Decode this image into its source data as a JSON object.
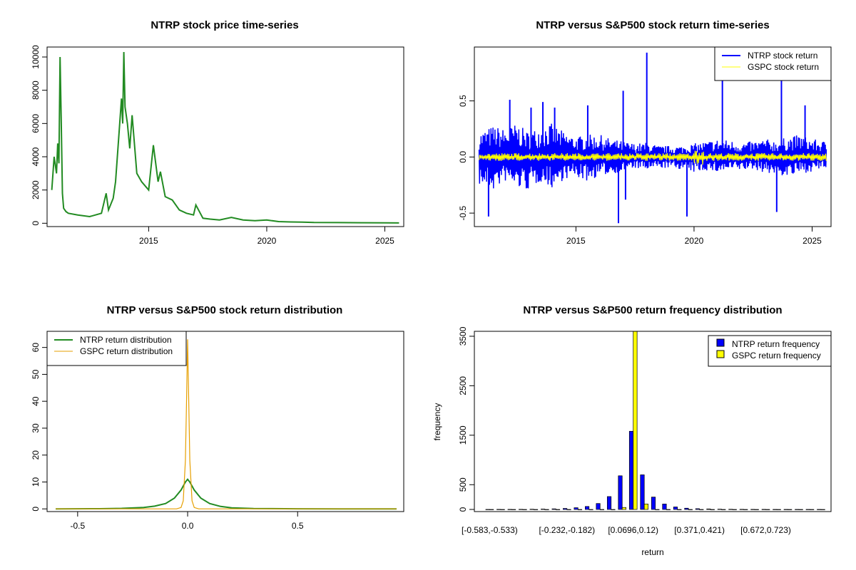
{
  "colors": {
    "price": "#228B22",
    "ntrp_return": "#0000FF",
    "gspc_return": "#FFFF00",
    "ntrp_density": "#228B22",
    "gspc_density": "#E69F00",
    "ntrp_bar": "#0000FF",
    "gspc_bar": "#FFFF00"
  },
  "chart_data": [
    {
      "type": "line",
      "title": "NTRP stock price time-series",
      "xlabel": "",
      "ylabel": "",
      "xlim": [
        2010.7,
        2025.8
      ],
      "ylim": [
        -200,
        10600
      ],
      "xticks": [
        2015,
        2020,
        2025
      ],
      "yticks": [
        0,
        2000,
        4000,
        6000,
        8000,
        10000
      ],
      "grid": false,
      "series": [
        {
          "x": [
            2010.9,
            2011.0,
            2011.1,
            2011.15,
            2011.2,
            2011.25,
            2011.3,
            2011.35,
            2011.4,
            2011.5,
            2011.6,
            2012.0,
            2012.5,
            2013.0,
            2013.2,
            2013.3,
            2013.5,
            2013.6,
            2013.75,
            2013.85,
            2013.9,
            2013.95,
            2014.0,
            2014.1,
            2014.2,
            2014.3,
            2014.5,
            2014.7,
            2015.0,
            2015.2,
            2015.4,
            2015.5,
            2015.7,
            2016.0,
            2016.3,
            2016.6,
            2016.9,
            2017.0,
            2017.3,
            2017.6,
            2018.0,
            2018.5,
            2019.0,
            2019.5,
            2020.0,
            2020.5,
            2021.0,
            2021.5,
            2022.0,
            2023.0,
            2024.0,
            2025.0,
            2025.6
          ],
          "y": [
            2000,
            4000,
            3000,
            4800,
            3600,
            10000,
            6000,
            1800,
            900,
            700,
            600,
            500,
            400,
            600,
            1800,
            800,
            1500,
            2500,
            5500,
            7500,
            6000,
            10300,
            7000,
            6000,
            4500,
            6500,
            3000,
            2500,
            2000,
            4700,
            2500,
            3100,
            1600,
            1400,
            800,
            600,
            500,
            1100,
            300,
            250,
            200,
            350,
            200,
            150,
            200,
            100,
            80,
            70,
            50,
            40,
            30,
            25,
            20
          ]
        }
      ]
    },
    {
      "type": "line",
      "title": "NTRP versus S&P500 stock return time-series",
      "xlabel": "",
      "ylabel": "",
      "xlim": [
        2010.7,
        2025.8
      ],
      "ylim": [
        -0.62,
        0.98
      ],
      "xticks": [
        2015,
        2020,
        2025
      ],
      "yticks": [
        -0.5,
        0.0,
        0.5
      ],
      "ytick_labels": [
        "-0.5",
        "0.0",
        "0.5"
      ],
      "grid": false,
      "legend": {
        "position": "top-right",
        "entries": [
          "NTRP stock return",
          "GSPC stock return"
        ]
      },
      "spikes": {
        "x": [
          2011.3,
          2012.2,
          2013.1,
          2013.6,
          2014.1,
          2015.5,
          2016.8,
          2017.0,
          2017.1,
          2018.0,
          2019.7,
          2021.2,
          2023.5,
          2023.7,
          2024.7
        ],
        "y": [
          -0.53,
          0.51,
          0.44,
          0.49,
          0.44,
          0.46,
          -0.59,
          0.59,
          -0.38,
          0.93,
          -0.53,
          0.71,
          -0.49,
          0.69,
          0.46
        ]
      },
      "envelope": {
        "x": [
          2010.9,
          2011.5,
          2012.0,
          2012.5,
          2013.0,
          2013.5,
          2014.0,
          2014.5,
          2015.0,
          2015.5,
          2016.0,
          2016.5,
          2017.0,
          2017.5,
          2018.0,
          2018.5,
          2019.0,
          2019.5,
          2020.0,
          2020.5,
          2021.0,
          2021.5,
          2022.0,
          2022.5,
          2023.0,
          2023.5,
          2024.0,
          2024.5,
          2025.0,
          2025.6
        ],
        "upper": [
          0.22,
          0.28,
          0.25,
          0.3,
          0.22,
          0.28,
          0.3,
          0.22,
          0.18,
          0.2,
          0.2,
          0.16,
          0.14,
          0.12,
          0.13,
          0.1,
          0.1,
          0.1,
          0.12,
          0.14,
          0.16,
          0.15,
          0.13,
          0.14,
          0.16,
          0.15,
          0.18,
          0.2,
          0.16,
          0.14
        ],
        "lower": [
          -0.25,
          -0.3,
          -0.22,
          -0.28,
          -0.3,
          -0.22,
          -0.28,
          -0.2,
          -0.18,
          -0.22,
          -0.17,
          -0.15,
          -0.13,
          -0.1,
          -0.12,
          -0.1,
          -0.1,
          -0.11,
          -0.14,
          -0.12,
          -0.14,
          -0.12,
          -0.12,
          -0.11,
          -0.14,
          -0.16,
          -0.18,
          -0.15,
          -0.13,
          -0.1
        ]
      },
      "gspc_band": 0.035
    },
    {
      "type": "line",
      "title": "NTRP versus S&P500 stock return distribution",
      "xlabel": "",
      "ylabel": "",
      "xlim": [
        -0.6,
        0.95
      ],
      "ylim": [
        -1,
        66
      ],
      "xticks": [
        -0.5,
        0.0,
        0.5
      ],
      "xtick_labels": [
        "-0.5",
        "0.0",
        "0.5"
      ],
      "yticks": [
        0,
        10,
        20,
        30,
        40,
        50,
        60
      ],
      "grid": false,
      "legend": {
        "position": "top-left",
        "entries": [
          "NTRP return distribution",
          "GSPC return distribution"
        ]
      },
      "series": [
        {
          "x": [
            -0.6,
            -0.4,
            -0.3,
            -0.2,
            -0.15,
            -0.1,
            -0.06,
            -0.03,
            -0.01,
            0.0,
            0.01,
            0.03,
            0.06,
            0.1,
            0.15,
            0.2,
            0.3,
            0.5,
            0.7,
            0.95
          ],
          "y": [
            0,
            0.05,
            0.2,
            0.5,
            1.0,
            2.0,
            4.0,
            7.0,
            10.0,
            11.0,
            10.0,
            7.0,
            4.0,
            2.0,
            0.9,
            0.4,
            0.15,
            0.02,
            0.01,
            0
          ]
        },
        {
          "x": [
            -0.6,
            -0.05,
            -0.03,
            -0.02,
            -0.01,
            -0.005,
            0.0,
            0.005,
            0.01,
            0.02,
            0.03,
            0.05,
            0.95
          ],
          "y": [
            0,
            0,
            0.5,
            3,
            18,
            40,
            63,
            40,
            18,
            3,
            0.5,
            0,
            0
          ]
        }
      ]
    },
    {
      "type": "bar",
      "title": "NTRP versus S&P500 return frequency distribution",
      "xlabel": "return",
      "ylabel": "frequency",
      "ylim": [
        0,
        3600
      ],
      "yticks": [
        0,
        500,
        1500,
        2500,
        3500
      ],
      "grid": false,
      "legend": {
        "position": "top-right",
        "entries": [
          "NTRP return frequency",
          "GSPC return frequency"
        ]
      },
      "categories": [
        "[-0.583,-0.533)",
        "",
        "",
        "",
        "",
        "",
        "",
        "[-0.232,-0.182)",
        "",
        "",
        "",
        "",
        "",
        "[0.0696,0.12)",
        "",
        "",
        "",
        "",
        "",
        "[0.371,0.421)",
        "",
        "",
        "",
        "",
        "",
        "[0.672,0.723)",
        "",
        "",
        "",
        "",
        ""
      ],
      "series": [
        {
          "name": "NTRP return frequency",
          "values": [
            1,
            2,
            2,
            3,
            5,
            8,
            12,
            20,
            35,
            60,
            120,
            260,
            680,
            1580,
            700,
            250,
            110,
            50,
            25,
            15,
            10,
            6,
            4,
            3,
            2,
            2,
            1,
            1,
            1,
            1,
            1
          ]
        },
        {
          "name": "GSPC return frequency",
          "values": [
            0,
            0,
            0,
            0,
            0,
            0,
            0,
            0,
            0,
            0,
            0,
            0,
            40,
            3600,
            110,
            0,
            0,
            0,
            0,
            0,
            0,
            0,
            0,
            0,
            0,
            0,
            0,
            0,
            0,
            0,
            0
          ]
        }
      ]
    }
  ]
}
